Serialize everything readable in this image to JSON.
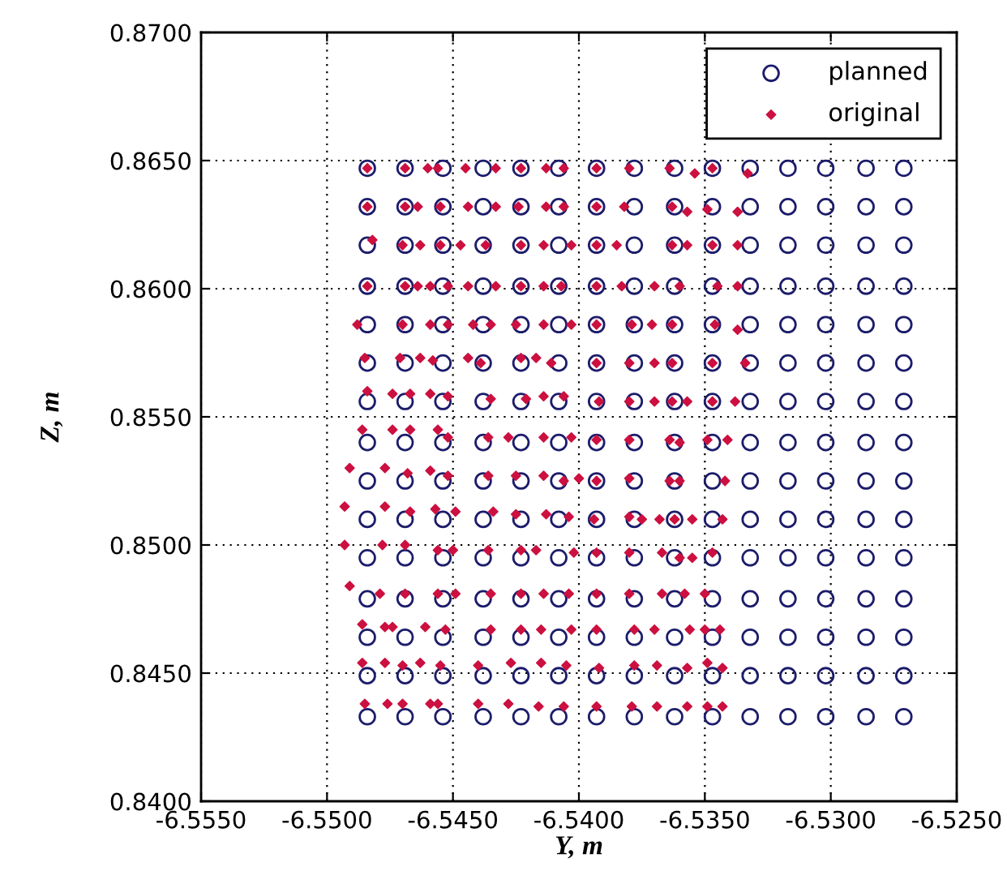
{
  "chart_data": {
    "type": "scatter",
    "xlabel": "Y, m",
    "ylabel": "Z, m",
    "xlim": [
      -6.555,
      -6.525
    ],
    "ylim": [
      0.84,
      0.87
    ],
    "xticks": [
      {
        "value": -6.555,
        "label": "-6.5550"
      },
      {
        "value": -6.55,
        "label": "-6.5500"
      },
      {
        "value": -6.545,
        "label": "-6.5450"
      },
      {
        "value": -6.54,
        "label": "-6.5400"
      },
      {
        "value": -6.535,
        "label": "-6.5350"
      },
      {
        "value": -6.53,
        "label": "-6.5300"
      },
      {
        "value": -6.525,
        "label": "-6.5250"
      }
    ],
    "yticks": [
      {
        "value": 0.84,
        "label": "0.8400"
      },
      {
        "value": 0.845,
        "label": "0.8450"
      },
      {
        "value": 0.85,
        "label": "0.8500"
      },
      {
        "value": 0.855,
        "label": "0.8550"
      },
      {
        "value": 0.86,
        "label": "0.8600"
      },
      {
        "value": 0.865,
        "label": "0.8650"
      },
      {
        "value": 0.87,
        "label": "0.8700"
      }
    ],
    "grid": true,
    "legend": "top right",
    "series": [
      {
        "name": "planned",
        "marker": "circle",
        "color": "#1c1c6b",
        "x": [
          -6.5484,
          -6.5469,
          -6.5454,
          -6.5438,
          -6.5423,
          -6.5408,
          -6.5393,
          -6.5378,
          -6.5362,
          -6.5347,
          -6.5332,
          -6.5317,
          -6.5302,
          -6.5286,
          -6.5271,
          -6.5484,
          -6.5469,
          -6.5454,
          -6.5438,
          -6.5423,
          -6.5408,
          -6.5393,
          -6.5378,
          -6.5362,
          -6.5347,
          -6.5332,
          -6.5317,
          -6.5302,
          -6.5286,
          -6.5271,
          -6.5484,
          -6.5469,
          -6.5454,
          -6.5438,
          -6.5423,
          -6.5408,
          -6.5393,
          -6.5378,
          -6.5362,
          -6.5347,
          -6.5332,
          -6.5317,
          -6.5302,
          -6.5286,
          -6.5271,
          -6.5484,
          -6.5469,
          -6.5454,
          -6.5438,
          -6.5423,
          -6.5408,
          -6.5393,
          -6.5378,
          -6.5362,
          -6.5347,
          -6.5332,
          -6.5317,
          -6.5302,
          -6.5286,
          -6.5271,
          -6.5484,
          -6.5469,
          -6.5454,
          -6.5438,
          -6.5423,
          -6.5408,
          -6.5393,
          -6.5378,
          -6.5362,
          -6.5347,
          -6.5332,
          -6.5317,
          -6.5302,
          -6.5286,
          -6.5271,
          -6.5484,
          -6.5469,
          -6.5454,
          -6.5438,
          -6.5423,
          -6.5408,
          -6.5393,
          -6.5378,
          -6.5362,
          -6.5347,
          -6.5332,
          -6.5317,
          -6.5302,
          -6.5286,
          -6.5271,
          -6.5484,
          -6.5469,
          -6.5454,
          -6.5438,
          -6.5423,
          -6.5408,
          -6.5393,
          -6.5378,
          -6.5362,
          -6.5347,
          -6.5332,
          -6.5317,
          -6.5302,
          -6.5286,
          -6.5271,
          -6.5484,
          -6.5469,
          -6.5454,
          -6.5438,
          -6.5423,
          -6.5408,
          -6.5393,
          -6.5378,
          -6.5362,
          -6.5347,
          -6.5332,
          -6.5317,
          -6.5302,
          -6.5286,
          -6.5271,
          -6.5484,
          -6.5469,
          -6.5454,
          -6.5438,
          -6.5423,
          -6.5408,
          -6.5393,
          -6.5378,
          -6.5362,
          -6.5347,
          -6.5332,
          -6.5317,
          -6.5302,
          -6.5286,
          -6.5271,
          -6.5484,
          -6.5469,
          -6.5454,
          -6.5438,
          -6.5423,
          -6.5408,
          -6.5393,
          -6.5378,
          -6.5362,
          -6.5347,
          -6.5332,
          -6.5317,
          -6.5302,
          -6.5286,
          -6.5271,
          -6.5484,
          -6.5469,
          -6.5454,
          -6.5438,
          -6.5423,
          -6.5408,
          -6.5393,
          -6.5378,
          -6.5362,
          -6.5347,
          -6.5332,
          -6.5317,
          -6.5302,
          -6.5286,
          -6.5271,
          -6.5484,
          -6.5469,
          -6.5454,
          -6.5438,
          -6.5423,
          -6.5408,
          -6.5393,
          -6.5378,
          -6.5362,
          -6.5347,
          -6.5332,
          -6.5317,
          -6.5302,
          -6.5286,
          -6.5271,
          -6.5484,
          -6.5469,
          -6.5454,
          -6.5438,
          -6.5423,
          -6.5408,
          -6.5393,
          -6.5378,
          -6.5362,
          -6.5347,
          -6.5332,
          -6.5317,
          -6.5302,
          -6.5286,
          -6.5271,
          -6.5484,
          -6.5469,
          -6.5454,
          -6.5438,
          -6.5423,
          -6.5408,
          -6.5393,
          -6.5378,
          -6.5362,
          -6.5347,
          -6.5332,
          -6.5317,
          -6.5302,
          -6.5286,
          -6.5271,
          -6.5484,
          -6.5469,
          -6.5454,
          -6.5438,
          -6.5423,
          -6.5408,
          -6.5393,
          -6.5378,
          -6.5362,
          -6.5347,
          -6.5332,
          -6.5317,
          -6.5302,
          -6.5286,
          -6.5271
        ],
        "values": [
          0.8647,
          0.8647,
          0.8647,
          0.8647,
          0.8647,
          0.8647,
          0.8647,
          0.8647,
          0.8647,
          0.8647,
          0.8647,
          0.8647,
          0.8647,
          0.8647,
          0.8647,
          0.8632,
          0.8632,
          0.8632,
          0.8632,
          0.8632,
          0.8632,
          0.8632,
          0.8632,
          0.8632,
          0.8632,
          0.8632,
          0.8632,
          0.8632,
          0.8632,
          0.8632,
          0.8617,
          0.8617,
          0.8617,
          0.8617,
          0.8617,
          0.8617,
          0.8617,
          0.8617,
          0.8617,
          0.8617,
          0.8617,
          0.8617,
          0.8617,
          0.8617,
          0.8617,
          0.8601,
          0.8601,
          0.8601,
          0.8601,
          0.8601,
          0.8601,
          0.8601,
          0.8601,
          0.8601,
          0.8601,
          0.8601,
          0.8601,
          0.8601,
          0.8601,
          0.8601,
          0.8586,
          0.8586,
          0.8586,
          0.8586,
          0.8586,
          0.8586,
          0.8586,
          0.8586,
          0.8586,
          0.8586,
          0.8586,
          0.8586,
          0.8586,
          0.8586,
          0.8586,
          0.8571,
          0.8571,
          0.8571,
          0.8571,
          0.8571,
          0.8571,
          0.8571,
          0.8571,
          0.8571,
          0.8571,
          0.8571,
          0.8571,
          0.8571,
          0.8571,
          0.8571,
          0.8556,
          0.8556,
          0.8556,
          0.8556,
          0.8556,
          0.8556,
          0.8556,
          0.8556,
          0.8556,
          0.8556,
          0.8556,
          0.8556,
          0.8556,
          0.8556,
          0.8556,
          0.854,
          0.854,
          0.854,
          0.854,
          0.854,
          0.854,
          0.854,
          0.854,
          0.854,
          0.854,
          0.854,
          0.854,
          0.854,
          0.854,
          0.854,
          0.8525,
          0.8525,
          0.8525,
          0.8525,
          0.8525,
          0.8525,
          0.8525,
          0.8525,
          0.8525,
          0.8525,
          0.8525,
          0.8525,
          0.8525,
          0.8525,
          0.8525,
          0.851,
          0.851,
          0.851,
          0.851,
          0.851,
          0.851,
          0.851,
          0.851,
          0.851,
          0.851,
          0.851,
          0.851,
          0.851,
          0.851,
          0.851,
          0.8495,
          0.8495,
          0.8495,
          0.8495,
          0.8495,
          0.8495,
          0.8495,
          0.8495,
          0.8495,
          0.8495,
          0.8495,
          0.8495,
          0.8495,
          0.8495,
          0.8495,
          0.8479,
          0.8479,
          0.8479,
          0.8479,
          0.8479,
          0.8479,
          0.8479,
          0.8479,
          0.8479,
          0.8479,
          0.8479,
          0.8479,
          0.8479,
          0.8479,
          0.8479,
          0.8464,
          0.8464,
          0.8464,
          0.8464,
          0.8464,
          0.8464,
          0.8464,
          0.8464,
          0.8464,
          0.8464,
          0.8464,
          0.8464,
          0.8464,
          0.8464,
          0.8464,
          0.8449,
          0.8449,
          0.8449,
          0.8449,
          0.8449,
          0.8449,
          0.8449,
          0.8449,
          0.8449,
          0.8449,
          0.8449,
          0.8449,
          0.8449,
          0.8449,
          0.8449,
          0.8433,
          0.8433,
          0.8433,
          0.8433,
          0.8433,
          0.8433,
          0.8433,
          0.8433,
          0.8433,
          0.8433,
          0.8433,
          0.8433,
          0.8433,
          0.8433,
          0.8433
        ]
      },
      {
        "name": "original",
        "marker": "diamond",
        "color": "#cc1040",
        "x": [
          -6.5484,
          -6.5469,
          -6.546,
          -6.5456,
          -6.5445,
          -6.5433,
          -6.5423,
          -6.5413,
          -6.5406,
          -6.5393,
          -6.538,
          -6.5364,
          -6.5354,
          -6.5347,
          -6.5333,
          -6.5484,
          -6.5469,
          -6.5464,
          -6.5455,
          -6.5444,
          -6.5433,
          -6.5424,
          -6.5413,
          -6.5406,
          -6.5393,
          -6.5382,
          -6.5363,
          -6.5357,
          -6.5349,
          -6.5337,
          -6.5482,
          -6.547,
          -6.5463,
          -6.5455,
          -6.5447,
          -6.5437,
          -6.5423,
          -6.5414,
          -6.5403,
          -6.5393,
          -6.5385,
          -6.5363,
          -6.5357,
          -6.5347,
          -6.5337,
          -6.5484,
          -6.5469,
          -6.5464,
          -6.5459,
          -6.5452,
          -6.5444,
          -6.5433,
          -6.5423,
          -6.5414,
          -6.5407,
          -6.5393,
          -6.5383,
          -6.537,
          -6.536,
          -6.5345,
          -6.5337,
          -6.5488,
          -6.547,
          -6.5459,
          -6.5452,
          -6.5442,
          -6.5435,
          -6.5425,
          -6.5414,
          -6.5403,
          -6.5393,
          -6.5379,
          -6.5371,
          -6.5363,
          -6.5346,
          -6.5337,
          -6.5485,
          -6.5471,
          -6.5463,
          -6.5458,
          -6.5444,
          -6.5439,
          -6.5423,
          -6.5417,
          -6.5411,
          -6.5393,
          -6.538,
          -6.537,
          -6.5363,
          -6.5347,
          -6.5334,
          -6.5484,
          -6.5474,
          -6.5467,
          -6.5459,
          -6.5452,
          -6.5435,
          -6.5421,
          -6.5414,
          -6.5406,
          -6.5392,
          -6.538,
          -6.537,
          -6.5363,
          -6.5357,
          -6.5347,
          -6.5338,
          -6.5486,
          -6.5474,
          -6.5467,
          -6.5456,
          -6.5452,
          -6.5436,
          -6.5428,
          -6.5414,
          -6.5403,
          -6.5393,
          -6.538,
          -6.5364,
          -6.536,
          -6.5349,
          -6.5341,
          -6.5491,
          -6.5477,
          -6.5468,
          -6.5459,
          -6.5452,
          -6.5436,
          -6.5425,
          -6.5414,
          -6.5406,
          -6.54,
          -6.5393,
          -6.538,
          -6.5364,
          -6.536,
          -6.5342,
          -6.5493,
          -6.5477,
          -6.5467,
          -6.5457,
          -6.5449,
          -6.5434,
          -6.5425,
          -6.5413,
          -6.5404,
          -6.5394,
          -6.538,
          -6.5375,
          -6.5368,
          -6.5362,
          -6.5355,
          -6.5343,
          -6.5493,
          -6.5478,
          -6.5469,
          -6.5456,
          -6.545,
          -6.5436,
          -6.5423,
          -6.5417,
          -6.5402,
          -6.5393,
          -6.538,
          -6.5367,
          -6.536,
          -6.5355,
          -6.5347,
          -6.5491,
          -6.5479,
          -6.5469,
          -6.5456,
          -6.5449,
          -6.5435,
          -6.5423,
          -6.5414,
          -6.5404,
          -6.5393,
          -6.538,
          -6.5367,
          -6.5358,
          -6.535,
          -6.5486,
          -6.5477,
          -6.5474,
          -6.5461,
          -6.5453,
          -6.5435,
          -6.5423,
          -6.5415,
          -6.5403,
          -6.5393,
          -6.5378,
          -6.537,
          -6.5356,
          -6.535,
          -6.5344,
          -6.5486,
          -6.5477,
          -6.547,
          -6.5463,
          -6.5455,
          -6.544,
          -6.5427,
          -6.5415,
          -6.5405,
          -6.5392,
          -6.5378,
          -6.5369,
          -6.5357,
          -6.5349,
          -6.5343,
          -6.5485,
          -6.5476,
          -6.547,
          -6.5459,
          -6.5456,
          -6.544,
          -6.5428,
          -6.5416,
          -6.5406,
          -6.5393,
          -6.5379,
          -6.5369,
          -6.5357,
          -6.5349,
          -6.5343
        ],
        "values": [
          0.8647,
          0.8647,
          0.8647,
          0.8647,
          0.8647,
          0.8647,
          0.8647,
          0.8647,
          0.8647,
          0.8647,
          0.8647,
          0.8647,
          0.8645,
          0.8647,
          0.8645,
          0.8632,
          0.8632,
          0.8632,
          0.8632,
          0.8632,
          0.8632,
          0.8632,
          0.8632,
          0.8632,
          0.8632,
          0.8632,
          0.8632,
          0.863,
          0.8631,
          0.863,
          0.8619,
          0.8617,
          0.8617,
          0.8617,
          0.8617,
          0.8617,
          0.8617,
          0.8617,
          0.8617,
          0.8617,
          0.8617,
          0.8617,
          0.8617,
          0.8617,
          0.8617,
          0.8601,
          0.8601,
          0.8601,
          0.8601,
          0.8601,
          0.8601,
          0.8601,
          0.8601,
          0.8601,
          0.8601,
          0.8601,
          0.8601,
          0.8601,
          0.8601,
          0.8601,
          0.8601,
          0.8586,
          0.8586,
          0.8586,
          0.8586,
          0.8586,
          0.8586,
          0.8586,
          0.8586,
          0.8586,
          0.8586,
          0.8586,
          0.8586,
          0.8586,
          0.8586,
          0.8584,
          0.8573,
          0.8573,
          0.8573,
          0.8572,
          0.8573,
          0.8571,
          0.8573,
          0.8573,
          0.8571,
          0.8571,
          0.8571,
          0.8571,
          0.8571,
          0.8571,
          0.8571,
          0.856,
          0.8559,
          0.8559,
          0.8559,
          0.8558,
          0.8557,
          0.8557,
          0.8558,
          0.8558,
          0.8556,
          0.8556,
          0.8556,
          0.8556,
          0.8556,
          0.8556,
          0.8556,
          0.8545,
          0.8545,
          0.8545,
          0.8545,
          0.8542,
          0.8542,
          0.8542,
          0.8542,
          0.8542,
          0.8541,
          0.8541,
          0.8541,
          0.854,
          0.8541,
          0.8541,
          0.853,
          0.853,
          0.8528,
          0.8529,
          0.8527,
          0.8527,
          0.8527,
          0.8527,
          0.8525,
          0.8526,
          0.8525,
          0.8526,
          0.8525,
          0.8525,
          0.8525,
          0.8515,
          0.8515,
          0.8513,
          0.8514,
          0.8513,
          0.8513,
          0.8512,
          0.8512,
          0.8511,
          0.851,
          0.8511,
          0.851,
          0.851,
          0.851,
          0.851,
          0.851,
          0.85,
          0.85,
          0.85,
          0.8498,
          0.8498,
          0.8498,
          0.8498,
          0.8498,
          0.8497,
          0.8497,
          0.8497,
          0.8497,
          0.8495,
          0.8495,
          0.8497,
          0.8484,
          0.8481,
          0.8481,
          0.8481,
          0.8481,
          0.8481,
          0.8481,
          0.8481,
          0.8481,
          0.8481,
          0.8481,
          0.8481,
          0.8481,
          0.8481,
          0.8469,
          0.8468,
          0.8468,
          0.8468,
          0.8467,
          0.8467,
          0.8467,
          0.8467,
          0.8467,
          0.8467,
          0.8467,
          0.8467,
          0.8467,
          0.8467,
          0.8467,
          0.8454,
          0.8454,
          0.8453,
          0.8454,
          0.8453,
          0.8453,
          0.8454,
          0.8454,
          0.8453,
          0.8452,
          0.8453,
          0.8453,
          0.8452,
          0.8454,
          0.8452,
          0.8438,
          0.8438,
          0.8438,
          0.8438,
          0.8438,
          0.8438,
          0.8438,
          0.8437,
          0.8437,
          0.8437,
          0.8437,
          0.8437,
          0.8437,
          0.8437,
          0.8437
        ]
      }
    ]
  }
}
